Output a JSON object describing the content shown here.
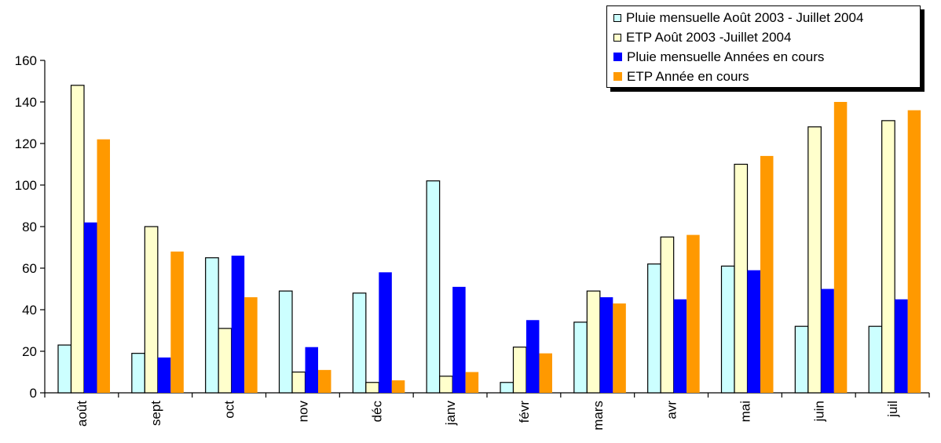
{
  "chart_data": {
    "type": "bar",
    "categories": [
      "août",
      "sept",
      "oct",
      "nov",
      "déc",
      "janv",
      "févr",
      "mars",
      "avr",
      "mai",
      "juin",
      "juil"
    ],
    "series": [
      {
        "name": "Pluie mensuelle Août 2003 - Juillet 2004",
        "color": "#ccffff",
        "outlined": true,
        "values": [
          23,
          19,
          65,
          49,
          48,
          102,
          5,
          34,
          62,
          61,
          32,
          32
        ]
      },
      {
        "name": "ETP Août 2003 -Juillet 2004",
        "color": "#ffffcc",
        "outlined": true,
        "values": [
          148,
          80,
          31,
          10,
          5,
          8,
          22,
          49,
          75,
          110,
          128,
          131
        ]
      },
      {
        "name": "Pluie mensuelle Années en cours",
        "color": "#0000ff",
        "outlined": false,
        "values": [
          82,
          17,
          66,
          22,
          58,
          51,
          35,
          46,
          45,
          59,
          50,
          45
        ]
      },
      {
        "name": "ETP Année en cours",
        "color": "#ff9900",
        "outlined": false,
        "values": [
          122,
          68,
          46,
          11,
          6,
          10,
          19,
          43,
          76,
          114,
          140,
          136
        ]
      }
    ],
    "yticks": [
      "0",
      "20",
      "40",
      "60",
      "80",
      "100",
      "120",
      "140",
      "160"
    ],
    "ylim": [
      0,
      160
    ],
    "grid": false,
    "legend_position": "top-right"
  }
}
